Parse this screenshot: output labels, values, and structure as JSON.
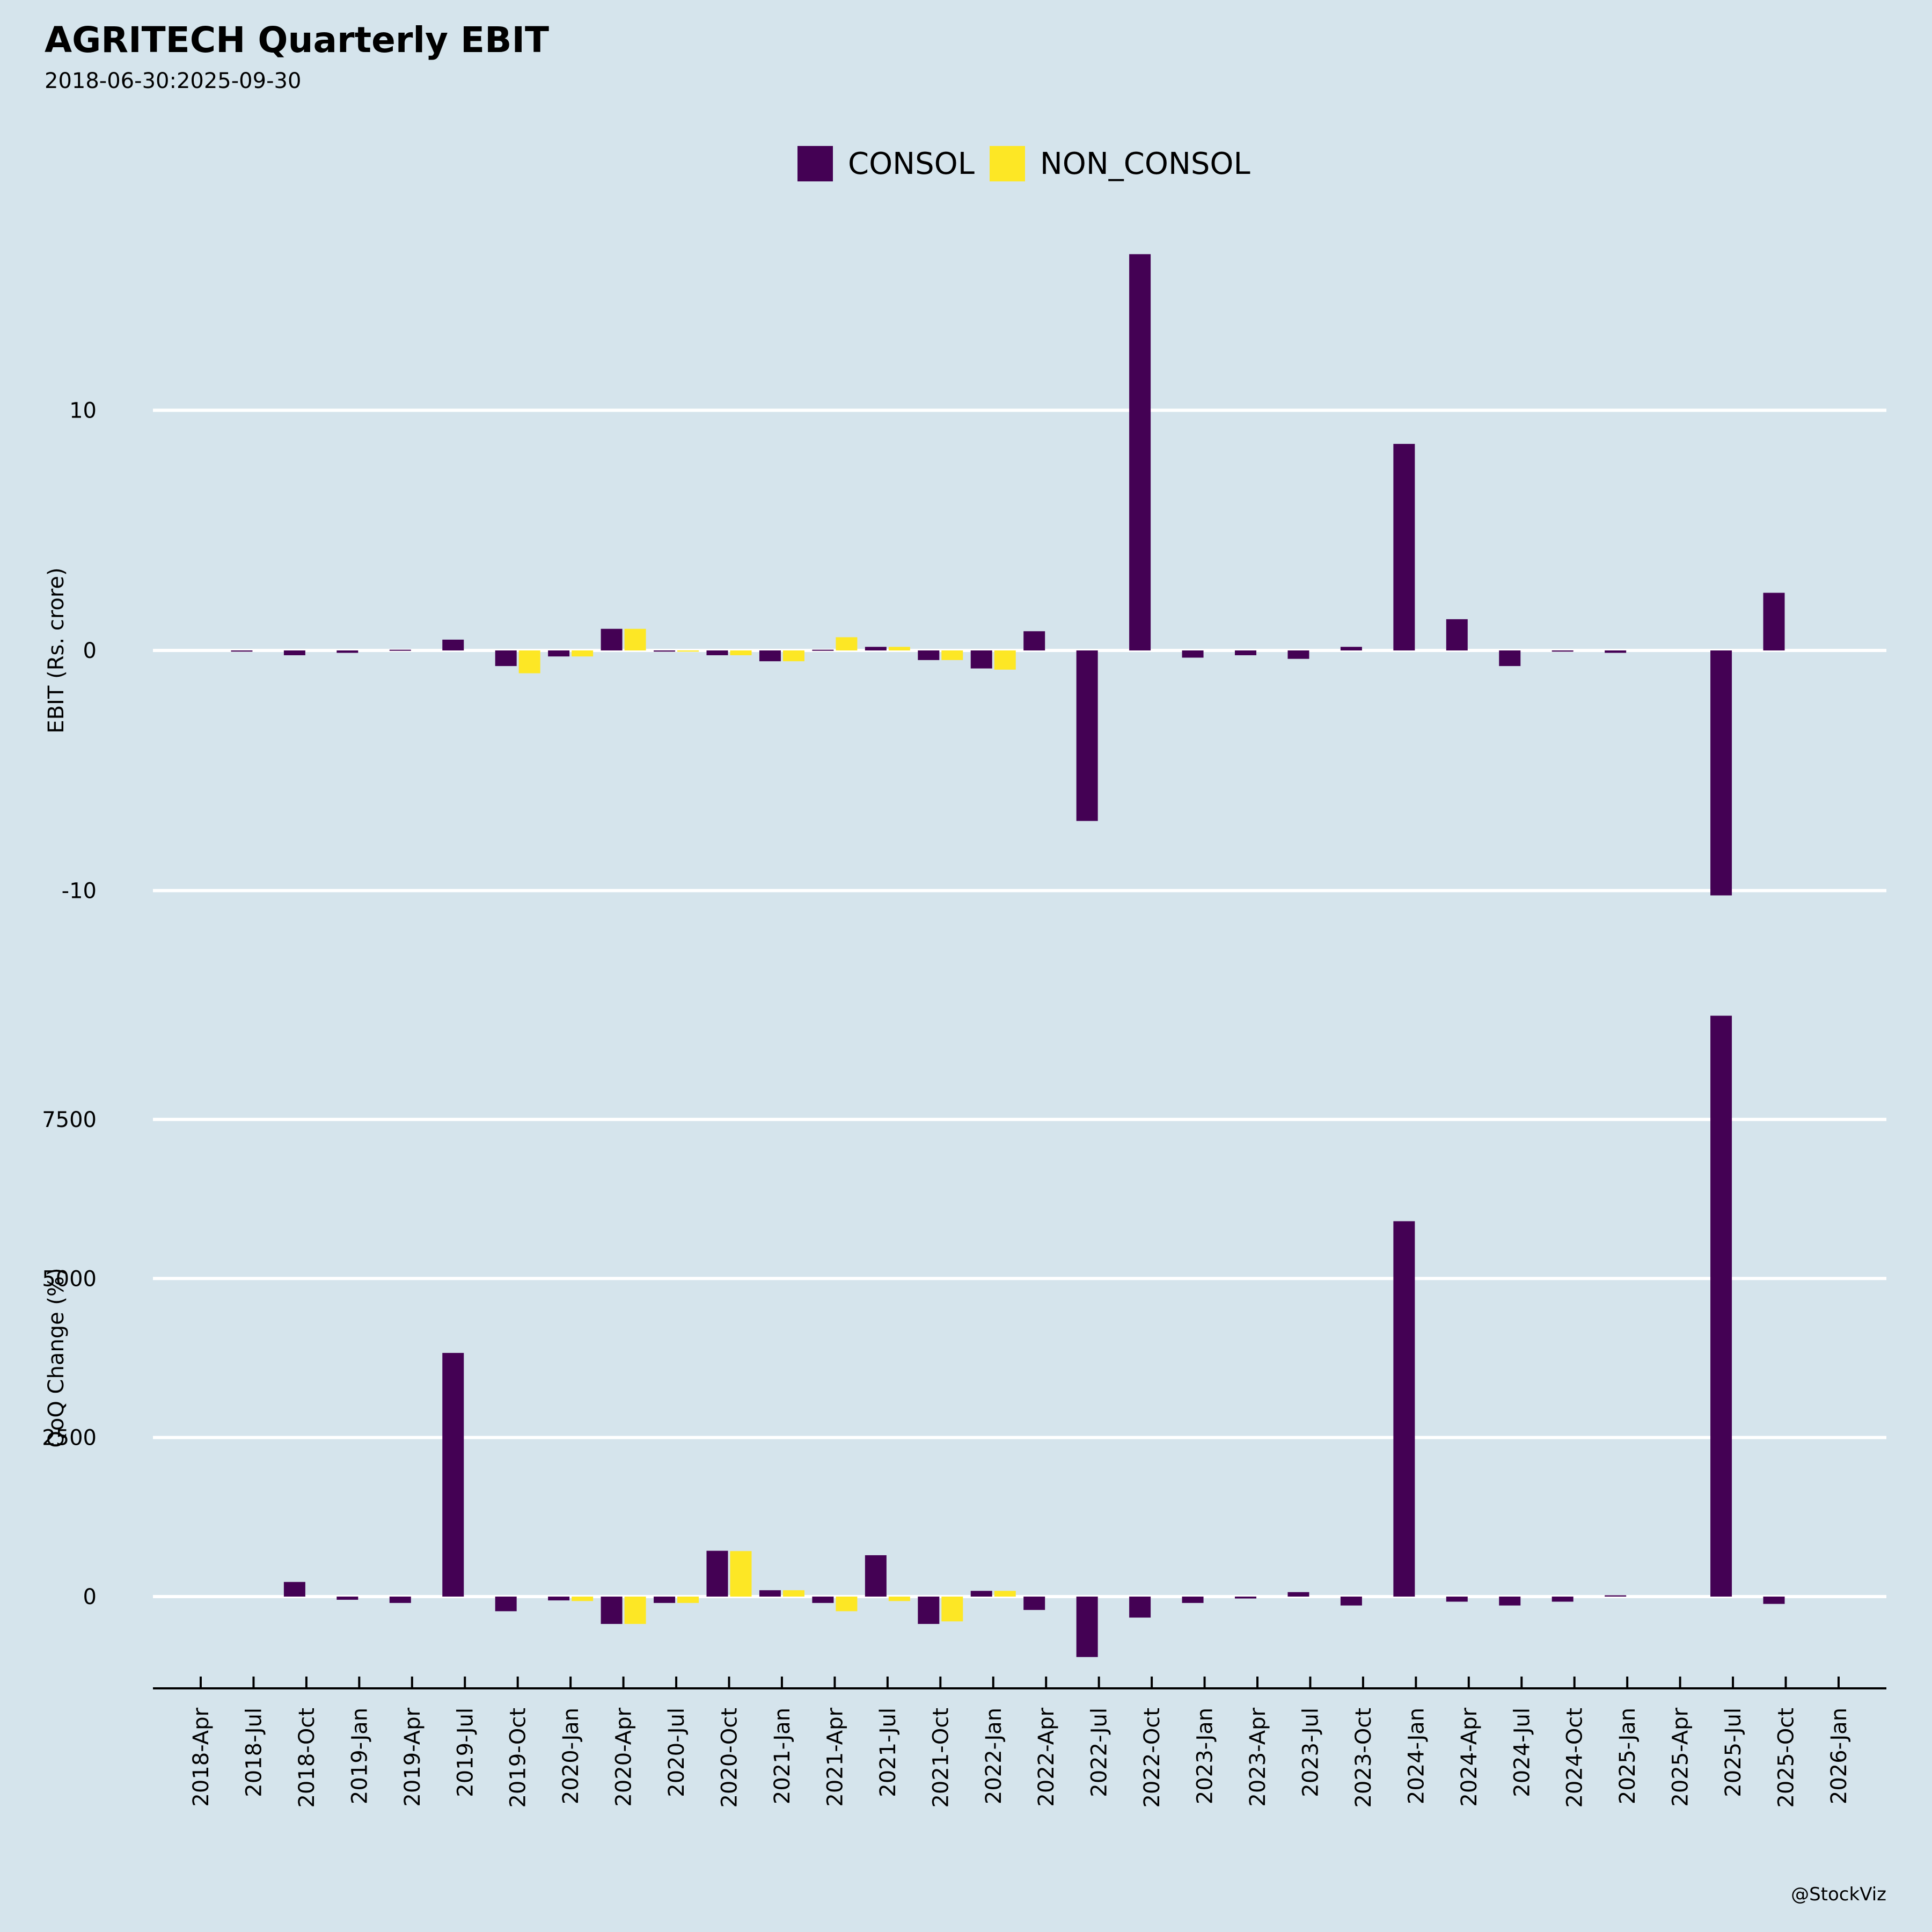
{
  "header": {
    "title": "AGRITECH Quarterly EBIT",
    "subtitle": "2018-06-30:2025-09-30"
  },
  "credit": "@StockViz",
  "colors": {
    "CONSOL": "#440154",
    "NON_CONSOL": "#fde725",
    "grid": "#ffffff",
    "background": "#d5e4ec"
  },
  "chart_data": [
    {
      "type": "bar",
      "title": "AGRITECH Quarterly EBIT",
      "subtitle": "2018-06-30:2025-09-30",
      "xlabel": "",
      "ylabel": "EBIT (Rs. crore)",
      "ylim": [
        -10.5,
        18.5
      ],
      "yticks": [
        -10,
        0,
        10
      ],
      "ytick_labels": [
        "-10",
        "0",
        "10"
      ],
      "grid": true,
      "legend": {
        "position": "top-center",
        "entries": [
          "CONSOL",
          "NON_CONSOL"
        ]
      },
      "x": [
        "2018-Jul",
        "2018-Oct",
        "2019-Jan",
        "2019-Apr",
        "2019-Jul",
        "2019-Oct",
        "2020-Jan",
        "2020-Apr",
        "2020-Jul",
        "2020-Oct",
        "2021-Jan",
        "2021-Apr",
        "2021-Jul",
        "2021-Oct",
        "2022-Jan",
        "2022-Apr",
        "2022-Jul",
        "2022-Oct",
        "2023-Jan",
        "2023-Apr",
        "2023-Jul",
        "2023-Oct",
        "2024-Jan",
        "2024-Apr",
        "2024-Jul",
        "2024-Oct",
        "2025-Jan",
        "2025-Apr",
        "2025-Jul",
        "2025-Oct"
      ],
      "series": [
        {
          "name": "CONSOL",
          "values": [
            -0.05,
            -0.2,
            -0.1,
            0.03,
            0.45,
            -0.65,
            -0.25,
            0.9,
            -0.05,
            -0.2,
            -0.45,
            0.03,
            0.15,
            -0.4,
            -0.75,
            0.8,
            -7.1,
            16.5,
            -0.3,
            -0.2,
            -0.35,
            0.15,
            8.6,
            1.3,
            -0.65,
            -0.05,
            -0.1,
            null,
            -10.2,
            2.4
          ]
        },
        {
          "name": "NON_CONSOL",
          "values": [
            null,
            null,
            null,
            null,
            null,
            -0.95,
            -0.25,
            0.9,
            -0.05,
            -0.2,
            -0.45,
            0.55,
            0.15,
            -0.4,
            -0.8,
            null,
            null,
            null,
            null,
            null,
            null,
            null,
            null,
            null,
            null,
            null,
            null,
            null,
            null,
            null
          ]
        }
      ]
    },
    {
      "type": "bar",
      "xlabel": "",
      "ylabel": "QoQ Change (%)",
      "ylim": [
        -1450,
        9600
      ],
      "yticks": [
        0,
        2500,
        5000,
        7500
      ],
      "ytick_labels": [
        "0",
        "2500",
        "5000",
        "7500"
      ],
      "grid": true,
      "x": [
        "2018-Jul",
        "2018-Oct",
        "2019-Jan",
        "2019-Apr",
        "2019-Jul",
        "2019-Oct",
        "2020-Jan",
        "2020-Apr",
        "2020-Jul",
        "2020-Oct",
        "2021-Jan",
        "2021-Apr",
        "2021-Jul",
        "2021-Oct",
        "2022-Jan",
        "2022-Apr",
        "2022-Jul",
        "2022-Oct",
        "2023-Jan",
        "2023-Apr",
        "2023-Jul",
        "2023-Oct",
        "2024-Jan",
        "2024-Apr",
        "2024-Jul",
        "2024-Oct",
        "2025-Jan",
        "2025-Apr",
        "2025-Jul",
        "2025-Oct"
      ],
      "xtick_labels": [
        "2018-Apr",
        "2018-Jul",
        "2018-Oct",
        "2019-Jan",
        "2019-Apr",
        "2019-Jul",
        "2019-Oct",
        "2020-Jan",
        "2020-Apr",
        "2020-Jul",
        "2020-Oct",
        "2021-Jan",
        "2021-Apr",
        "2021-Jul",
        "2021-Oct",
        "2022-Jan",
        "2022-Apr",
        "2022-Jul",
        "2022-Oct",
        "2023-Jan",
        "2023-Apr",
        "2023-Jul",
        "2023-Oct",
        "2024-Jan",
        "2024-Apr",
        "2024-Jul",
        "2024-Oct",
        "2025-Jan",
        "2025-Apr",
        "2025-Jul",
        "2025-Oct",
        "2026-Jan"
      ],
      "series": [
        {
          "name": "CONSOL",
          "values": [
            null,
            230,
            -50,
            -100,
            3830,
            -230,
            -60,
            -430,
            -100,
            720,
            100,
            -100,
            650,
            -430,
            90,
            -210,
            -950,
            -330,
            -100,
            -30,
            70,
            -140,
            5900,
            -80,
            -140,
            -80,
            20,
            null,
            9130,
            -115
          ]
        },
        {
          "name": "NON_CONSOL",
          "values": [
            null,
            null,
            null,
            null,
            null,
            null,
            -70,
            -430,
            -100,
            715,
            100,
            -230,
            -70,
            -390,
            90,
            null,
            null,
            null,
            null,
            null,
            null,
            null,
            null,
            null,
            null,
            null,
            null,
            null,
            null,
            null
          ]
        }
      ]
    }
  ]
}
